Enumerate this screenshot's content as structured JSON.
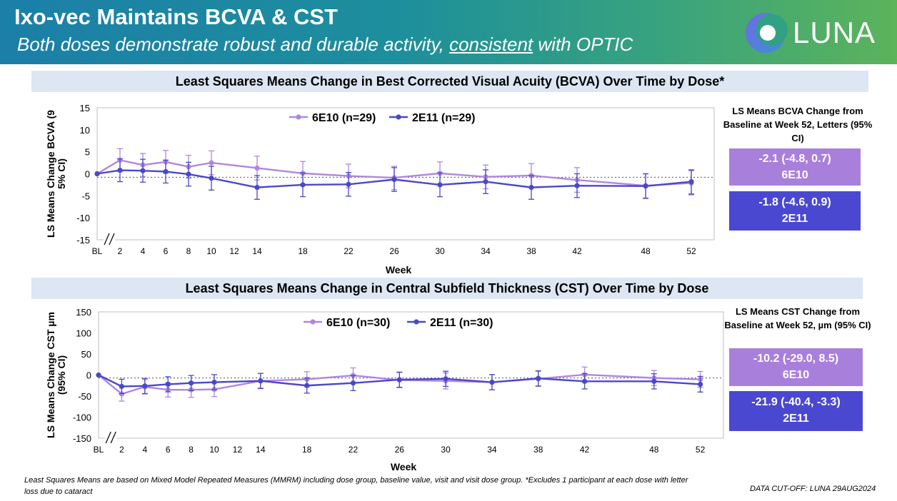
{
  "header": {
    "title": "Ixo-vec Maintains BCVA & CST",
    "subtitle_pre": "Both doses demonstrate robust and durable activity, ",
    "subtitle_underlined": "consistent",
    "subtitle_post": " with OPTIC",
    "logo_text": "LUNA"
  },
  "bcva_summary": {
    "heading": "LS Means BCVA Change from Baseline at Week 52, Letters (95% CI)",
    "low_dose_value": "-2.1 (-4.8, 0.7)",
    "low_dose_label": "6E10",
    "high_dose_value": "-1.8 (-4.6, 0.9)",
    "high_dose_label": "2E11"
  },
  "cst_summary": {
    "heading": "LS Means CST Change from Baseline at Week 52, µm (95% CI)",
    "low_dose_value": "-10.2 (-29.0, 8.5)",
    "low_dose_label": "6E10",
    "high_dose_value": "-21.9 (-40.4, -3.3)",
    "high_dose_label": "2E11"
  },
  "footnote": "Least Squares Means are based on Mixed Model Repeated Measures (MMRM) including dose group, baseline value, visit and visit dose group. *Excludes 1 participant at each dose with letter loss due to cataract",
  "cutoff": "DATA CUT-OFF: LUNA 29AUG2024",
  "colors": {
    "low_dose": "#b086e0",
    "high_dose": "#4a48c8"
  },
  "chart_data": [
    {
      "type": "line",
      "title": "Least Squares Means Change in Best Corrected Visual Acuity (BCVA) Over Time by Dose*",
      "xlabel": "Week",
      "ylabel": "LS Means Change BCVA (95% CI)",
      "ylim": [
        -15,
        15
      ],
      "yticks": [
        15,
        10,
        5,
        0,
        -5,
        -10,
        -15
      ],
      "xlim": [
        0,
        54
      ],
      "xticks": [
        0,
        2,
        4,
        6,
        8,
        10,
        12,
        14,
        18,
        22,
        26,
        30,
        34,
        38,
        42,
        48,
        52
      ],
      "xticklabels": [
        "BL",
        "2",
        "4",
        "6",
        "8",
        "10",
        "12",
        "14",
        "18",
        "22",
        "26",
        "30",
        "34",
        "38",
        "42",
        "48",
        "52"
      ],
      "axis_break": true,
      "reference_line_y": -0.8,
      "legend_position": "top-center",
      "series": [
        {
          "name": "6E10 (n=29)",
          "x": [
            0,
            2,
            4,
            6,
            8,
            10,
            14,
            18,
            22,
            26,
            30,
            34,
            38,
            42,
            48,
            52
          ],
          "values": [
            0,
            3.1,
            2.0,
            2.7,
            1.6,
            2.5,
            1.3,
            0.1,
            -0.5,
            -0.9,
            0.1,
            -0.7,
            -0.4,
            -1.4,
            -2.7,
            -2.1
          ],
          "lower": [
            0,
            0.5,
            -0.6,
            0.1,
            -1.0,
            -0.2,
            -1.4,
            -2.6,
            -3.2,
            -3.6,
            -2.5,
            -3.4,
            -3.1,
            -4.2,
            -5.5,
            -4.8
          ],
          "upper": [
            0,
            5.7,
            4.6,
            5.3,
            4.2,
            5.2,
            4.0,
            2.8,
            2.2,
            1.7,
            2.7,
            2.0,
            2.3,
            1.4,
            0.0,
            0.7
          ]
        },
        {
          "name": "2E11 (n=29)",
          "x": [
            0,
            2,
            4,
            6,
            8,
            10,
            14,
            18,
            22,
            26,
            30,
            34,
            38,
            42,
            48,
            52
          ],
          "values": [
            0,
            0.8,
            0.7,
            0.5,
            -0.1,
            -1.0,
            -3.1,
            -2.5,
            -2.4,
            -1.3,
            -2.5,
            -1.8,
            -3.1,
            -2.7,
            -2.8,
            -1.8
          ],
          "lower": [
            0,
            -1.8,
            -1.9,
            -2.1,
            -2.8,
            -3.7,
            -5.8,
            -5.2,
            -5.1,
            -4.0,
            -5.2,
            -4.5,
            -5.8,
            -5.4,
            -5.6,
            -4.6
          ],
          "upper": [
            0,
            3.4,
            3.3,
            3.1,
            2.6,
            1.7,
            -0.4,
            0.2,
            0.3,
            1.4,
            0.2,
            0.9,
            -0.4,
            0.0,
            0.0,
            0.9
          ]
        }
      ]
    },
    {
      "type": "line",
      "title": "Least Squares Means Change in Central Subfield Thickness (CST) Over Time by Dose",
      "xlabel": "Week",
      "ylabel": "LS Means Change CST µm (95% CI)",
      "ylim": [
        -150,
        150
      ],
      "yticks": [
        150,
        100,
        50,
        0,
        -50,
        -100,
        -150
      ],
      "xlim": [
        0,
        54
      ],
      "xticks": [
        0,
        2,
        4,
        6,
        8,
        10,
        12,
        14,
        18,
        22,
        26,
        30,
        34,
        38,
        42,
        48,
        52
      ],
      "xticklabels": [
        "BL",
        "2",
        "4",
        "6",
        "8",
        "10",
        "12",
        "14",
        "18",
        "22",
        "26",
        "30",
        "34",
        "38",
        "42",
        "48",
        "52"
      ],
      "axis_break": true,
      "reference_line_y": -7,
      "legend_position": "top-center",
      "series": [
        {
          "name": "6E10 (n=30)",
          "x": [
            0,
            2,
            4,
            6,
            8,
            10,
            14,
            18,
            22,
            26,
            30,
            34,
            38,
            42,
            48,
            52
          ],
          "values": [
            0,
            -45,
            -28,
            -35,
            -35,
            -34,
            -14,
            -10,
            -1,
            -12,
            -14,
            -17,
            -9,
            1,
            -7,
            -10.2
          ],
          "lower": [
            0,
            -62,
            -45,
            -52,
            -53,
            -51,
            -31,
            -28,
            -19,
            -30,
            -33,
            -35,
            -27,
            -17,
            -25,
            -29.0
          ],
          "upper": [
            0,
            -28,
            -11,
            -18,
            -17,
            -17,
            4,
            8,
            17,
            6,
            5,
            1,
            9,
            19,
            11,
            8.5
          ]
        },
        {
          "name": "2E11 (n=30)",
          "x": [
            0,
            2,
            4,
            6,
            8,
            10,
            14,
            18,
            22,
            26,
            30,
            34,
            38,
            42,
            48,
            52
          ],
          "values": [
            0,
            -27,
            -26,
            -22,
            -19,
            -17,
            -14,
            -25,
            -19,
            -11,
            -9,
            -17,
            -8,
            -15,
            -15,
            -21.9
          ],
          "lower": [
            0,
            -44,
            -44,
            -40,
            -37,
            -35,
            -32,
            -43,
            -37,
            -29,
            -27,
            -35,
            -26,
            -33,
            -33,
            -40.4
          ],
          "upper": [
            0,
            -10,
            -8,
            -4,
            -1,
            1,
            4,
            -7,
            -1,
            7,
            9,
            1,
            10,
            3,
            3,
            -3.3
          ]
        }
      ]
    }
  ]
}
